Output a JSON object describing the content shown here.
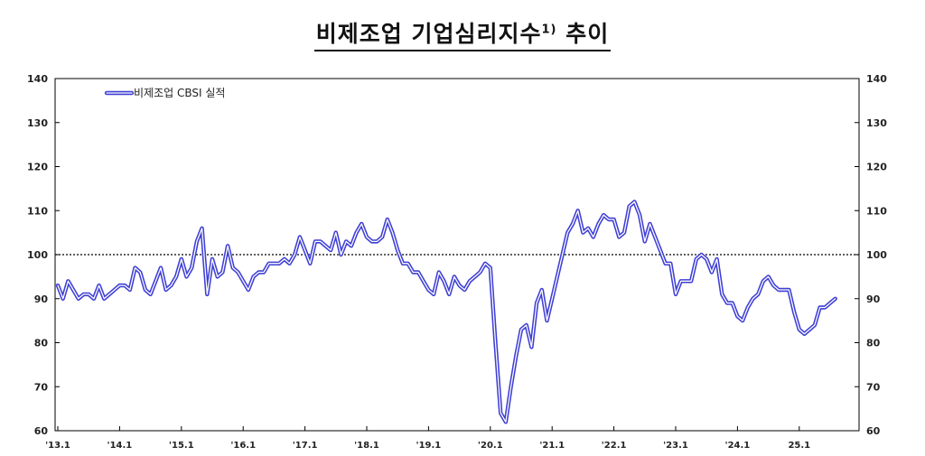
{
  "chart_data": {
    "type": "line",
    "title": "비제조업 기업심리지수",
    "title_sup": "1)",
    "title_suffix": " 추이",
    "xlabel": "",
    "ylabel": "",
    "ylim": [
      60,
      140
    ],
    "yticks": [
      60,
      70,
      80,
      90,
      100,
      110,
      120,
      130,
      140
    ],
    "reference_line": 100,
    "grid": false,
    "legend_position": "top-left",
    "x_tick_labels": [
      "'13.1",
      "'14.1",
      "'15.1",
      "'16.1",
      "'17.1",
      "'18.1",
      "'19.1",
      "'20.1",
      "'21.1",
      "'22.1",
      "'23.1",
      "'24.1",
      "25.1"
    ],
    "x_start": "2013-01",
    "series": [
      {
        "name": "비제조업 CBSI 실적",
        "color": "#3f3fd4",
        "values": [
          93,
          90,
          94,
          92,
          90,
          91,
          91,
          90,
          93,
          90,
          91,
          92,
          93,
          93,
          92,
          97,
          96,
          92,
          91,
          94,
          97,
          92,
          93,
          95,
          99,
          95,
          97,
          103,
          106,
          91,
          99,
          95,
          96,
          102,
          97,
          96,
          94,
          92,
          95,
          96,
          96,
          98,
          98,
          98,
          99,
          98,
          100,
          104,
          101,
          98,
          103,
          103,
          102,
          101,
          105,
          100,
          103,
          102,
          105,
          107,
          104,
          103,
          103,
          104,
          108,
          105,
          101,
          98,
          98,
          96,
          96,
          94,
          92,
          91,
          96,
          94,
          91,
          95,
          93,
          92,
          94,
          95,
          96,
          98,
          97,
          80,
          64,
          62,
          70,
          77,
          83,
          84,
          79,
          89,
          92,
          85,
          90,
          95,
          100,
          105,
          107,
          110,
          105,
          106,
          104,
          107,
          109,
          108,
          108,
          104,
          105,
          111,
          112,
          109,
          103,
          107,
          104,
          101,
          98,
          98,
          91,
          94,
          94,
          94,
          99,
          100,
          99,
          96,
          99,
          91,
          89,
          89,
          86,
          85,
          88,
          90,
          91,
          94,
          95,
          93,
          92,
          92,
          92,
          87,
          83,
          82,
          83,
          84,
          88,
          88,
          89,
          90
        ]
      }
    ]
  }
}
